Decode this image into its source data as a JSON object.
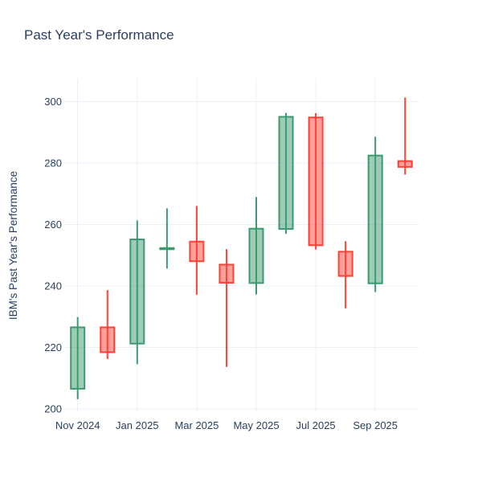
{
  "title": {
    "text": "Past Year's Performance"
  },
  "chart_data": {
    "type": "candlestick",
    "title": "Past Year's Performance",
    "xlabel": "",
    "ylabel": "IBM's Past Year's Performance",
    "y_ticks": [
      200,
      220,
      240,
      260,
      280,
      300
    ],
    "ylim": [
      199.0,
      307.5
    ],
    "x_tick_labels": [
      "Nov 2024",
      "Jan 2025",
      "Mar 2025",
      "May 2025",
      "Jul 2025",
      "Sep 2025"
    ],
    "grid": true,
    "legend": false,
    "colors": {
      "increasing_line": "#3D9970",
      "increasing_fill": "rgba(61,153,112,0.5)",
      "decreasing_line": "#FF4136",
      "decreasing_fill": "rgba(255,65,54,0.5)",
      "grid": "#EBF0F8",
      "text": "#2A3F5F",
      "background": "#FFFFFF"
    },
    "candles": [
      {
        "month": "Nov 2024",
        "open": 206.6,
        "high": 229.9,
        "low": 203.2,
        "close": 226.6
      },
      {
        "month": "Dec 2024",
        "open": 226.6,
        "high": 238.7,
        "low": 216.3,
        "close": 218.5
      },
      {
        "month": "Jan 2025",
        "open": 221.3,
        "high": 261.4,
        "low": 214.6,
        "close": 255.2
      },
      {
        "month": "Feb 2025",
        "open": 252.0,
        "high": 265.3,
        "low": 245.7,
        "close": 252.4
      },
      {
        "month": "Mar 2025",
        "open": 254.5,
        "high": 266.1,
        "low": 237.2,
        "close": 248.1
      },
      {
        "month": "Apr 2025",
        "open": 247.0,
        "high": 252.0,
        "low": 213.7,
        "close": 241.1
      },
      {
        "month": "May 2025",
        "open": 241.0,
        "high": 269.0,
        "low": 237.3,
        "close": 258.7
      },
      {
        "month": "Jun 2025",
        "open": 258.6,
        "high": 296.4,
        "low": 257.0,
        "close": 295.1
      },
      {
        "month": "Jul 2025",
        "open": 294.9,
        "high": 296.3,
        "low": 251.9,
        "close": 253.3
      },
      {
        "month": "Aug 2025",
        "open": 251.2,
        "high": 254.6,
        "low": 232.8,
        "close": 243.3
      },
      {
        "month": "Sep 2025",
        "open": 240.9,
        "high": 288.6,
        "low": 238.1,
        "close": 282.5
      },
      {
        "month": "Oct 2025",
        "open": 280.7,
        "high": 301.4,
        "low": 276.3,
        "close": 278.8
      }
    ]
  }
}
